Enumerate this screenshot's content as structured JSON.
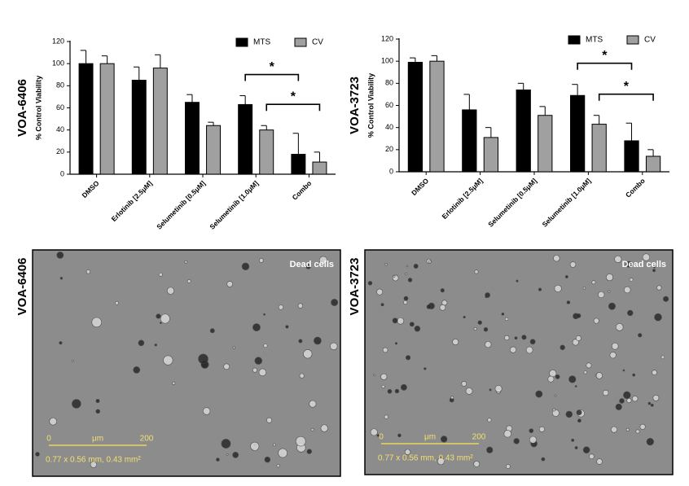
{
  "chart_data": [
    {
      "type": "bar",
      "title": "VOA-6406",
      "y_label": "% Control Viability",
      "categories": [
        "DMSO",
        "Erlotinib [2.5μM]",
        "Selumetinib [0.5μM]",
        "Selumetinib [1.0μM]",
        "Combo"
      ],
      "series": [
        {
          "name": "MTS",
          "color": "#000000",
          "values": [
            100,
            85,
            65,
            63,
            18
          ],
          "errors": [
            12,
            12,
            7,
            8,
            19
          ]
        },
        {
          "name": "CV",
          "color": "#a0a0a0",
          "values": [
            100,
            96,
            44,
            40,
            11
          ],
          "errors": [
            7,
            12,
            3,
            4,
            9
          ]
        }
      ],
      "ylim": [
        0,
        120
      ],
      "yticks": [
        0,
        20,
        40,
        60,
        80,
        100,
        120
      ],
      "legend": "top-right",
      "annotations": [
        "*",
        "*"
      ]
    },
    {
      "type": "bar",
      "title": "VOA-3723",
      "y_label": "% Control Viability",
      "categories": [
        "DMSO",
        "Erlotinib [2.5μM]",
        "Selumetinib [0.5μM]",
        "Selumetinib [1.0μM]",
        "Combo"
      ],
      "series": [
        {
          "name": "MTS",
          "color": "#000000",
          "values": [
            99,
            56,
            74,
            69,
            28
          ],
          "errors": [
            4,
            14,
            6,
            10,
            16
          ]
        },
        {
          "name": "CV",
          "color": "#a0a0a0",
          "values": [
            100,
            31,
            51,
            43,
            14
          ],
          "errors": [
            5,
            9,
            8,
            8,
            6
          ]
        }
      ],
      "ylim": [
        0,
        120
      ],
      "yticks": [
        0,
        20,
        40,
        60,
        80,
        100,
        120
      ],
      "legend": "top-right",
      "annotations": [
        "*",
        "*"
      ]
    }
  ],
  "micrographs": [
    {
      "title": "VOA-6406",
      "caption": "Dead cells",
      "scale_start": "0",
      "scale_unit": "μm",
      "scale_end": "200",
      "field": "0.77 x 0.56 mm, 0.43 mm²"
    },
    {
      "title": "VOA-3723",
      "caption": "Dead cells",
      "scale_start": "0",
      "scale_unit": "μm",
      "scale_end": "200",
      "field": "0.77 x 0.56 mm, 0.43 mm²"
    }
  ]
}
